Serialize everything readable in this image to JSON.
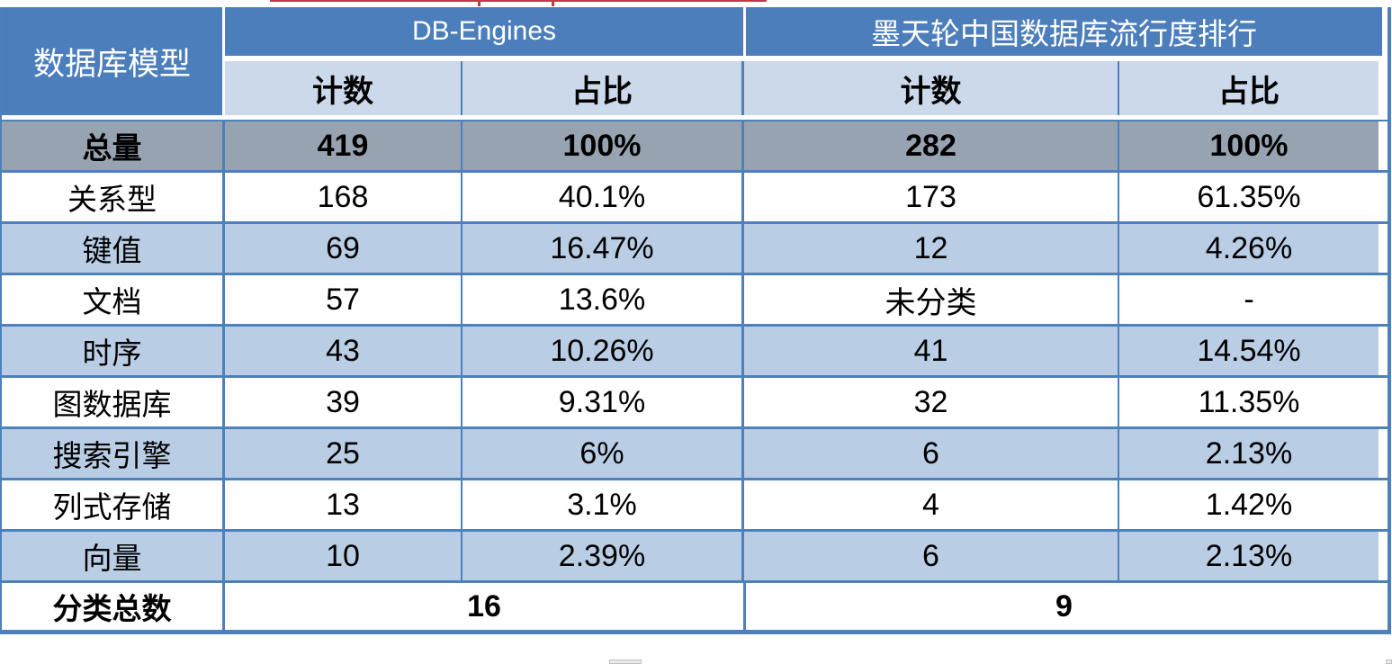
{
  "chart_data": {
    "type": "table",
    "header": {
      "model_column": "数据库模型",
      "groups": [
        {
          "label": "DB-Engines",
          "subcolumns": [
            "计数",
            "占比"
          ]
        },
        {
          "label": "墨天轮中国数据库流行度排行",
          "subcolumns": [
            "计数",
            "占比"
          ]
        }
      ]
    },
    "rows": [
      {
        "label": "总量",
        "values": [
          "419",
          "100%",
          "282",
          "100%"
        ]
      },
      {
        "label": "关系型",
        "values": [
          "168",
          "40.1%",
          "173",
          "61.35%"
        ]
      },
      {
        "label": "键值",
        "values": [
          "69",
          "16.47%",
          "12",
          "4.26%"
        ]
      },
      {
        "label": "文档",
        "values": [
          "57",
          "13.6%",
          "未分类",
          "-"
        ]
      },
      {
        "label": "时序",
        "values": [
          "43",
          "10.26%",
          "41",
          "14.54%"
        ]
      },
      {
        "label": "图数据库",
        "values": [
          "39",
          "9.31%",
          "32",
          "11.35%"
        ]
      },
      {
        "label": "搜索引擎",
        "values": [
          "25",
          "6%",
          "6",
          "2.13%"
        ]
      },
      {
        "label": "列式存储",
        "values": [
          "13",
          "3.1%",
          "4",
          "1.42%"
        ]
      },
      {
        "label": "向量",
        "values": [
          "10",
          "2.39%",
          "6",
          "2.13%"
        ]
      }
    ],
    "footer": {
      "label": "分类总数",
      "totals": [
        "16",
        "9"
      ]
    }
  },
  "colors": {
    "header_blue": "#4c7ebc",
    "subheader_bg": "#ccd9eb",
    "total_row_bg": "#98a3b2",
    "alt_row_bg": "#b9cde4",
    "border_blue": "#4e80bc",
    "artifact_red": "#c23b3c"
  }
}
